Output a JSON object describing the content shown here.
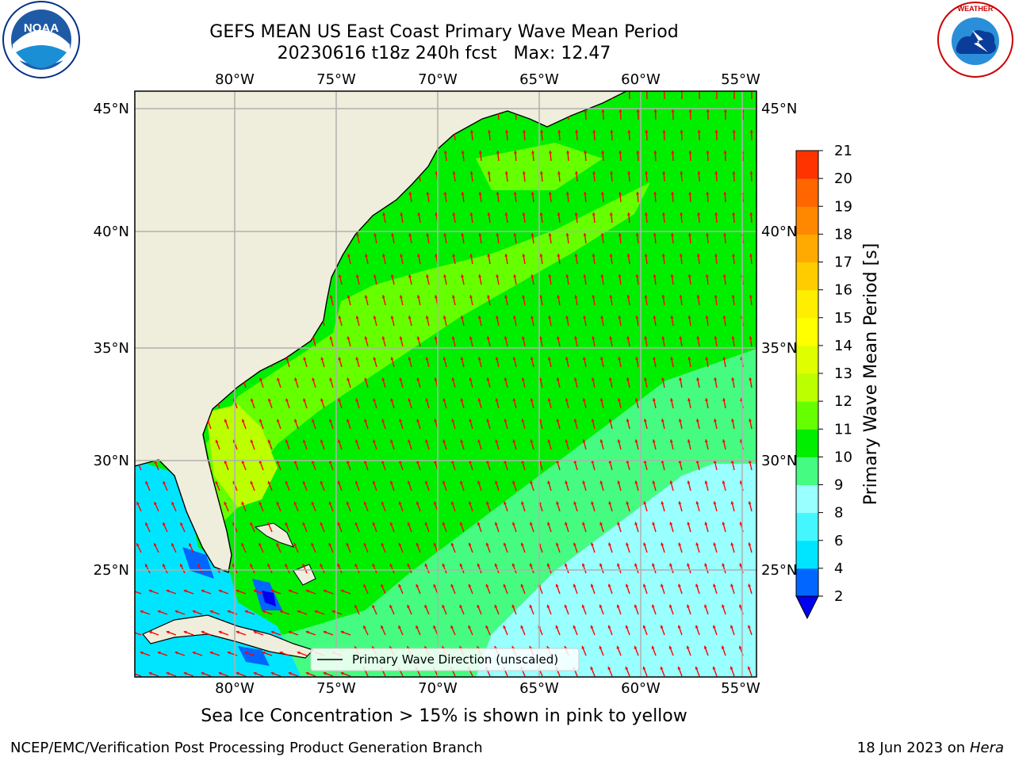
{
  "title": {
    "line1": "GEFS MEAN US East Coast Primary Wave Mean Period",
    "line2": "20230616 t18z 240h fcst   Max: 12.47"
  },
  "logos": {
    "left": {
      "icon": "noaa-logo",
      "text": "NOAA"
    },
    "right": {
      "icon": "national-weather-service-logo",
      "text": "NATIONAL WEATHER SERVICE"
    }
  },
  "map": {
    "lon_labels_top": [
      "80°W",
      "75°W",
      "70°W",
      "65°W",
      "60°W",
      "55°W"
    ],
    "lon_labels_bottom": [
      "80°W",
      "75°W",
      "70°W",
      "65°W",
      "60°W",
      "55°W"
    ],
    "lat_labels_left": [
      "45°N",
      "40°N",
      "35°N",
      "30°N",
      "25°N"
    ],
    "lat_labels_right": [
      "45°N",
      "40°N",
      "35°N",
      "30°N",
      "25°N"
    ],
    "legend_label": "Primary Wave Direction (unscaled)",
    "colors": {
      "land": "#efeddb",
      "arrows": "#ff0000",
      "grid": "#b0b0b0"
    }
  },
  "colorbar": {
    "label": "Primary Wave Mean Period [s]",
    "ticks": [
      "2",
      "4",
      "6",
      "8",
      "9",
      "10",
      "11",
      "12",
      "13",
      "14",
      "15",
      "16",
      "17",
      "18",
      "19",
      "20",
      "21"
    ],
    "colors": [
      "#0066ff",
      "#00e5ff",
      "#44f7ff",
      "#99ffff",
      "#46fb82",
      "#00ee00",
      "#66ff00",
      "#bbff00",
      "#dfff00",
      "#ffff00",
      "#ffee00",
      "#ffcc00",
      "#ffaa00",
      "#ff8800",
      "#ff6600",
      "#ff3300",
      "#ff0000"
    ],
    "under_color": "#0000ee"
  },
  "footer": {
    "note": "Sea Ice Concentration > 15% is shown in pink to yellow",
    "credit": "NCEP/EMC/Verification Post Processing Product Generation Branch",
    "date": "18 Jun 2023 on",
    "system": "Hera"
  }
}
